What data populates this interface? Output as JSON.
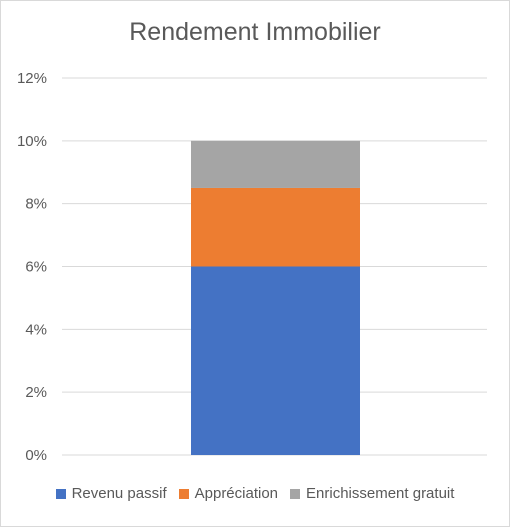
{
  "chart_data": {
    "type": "bar",
    "stacked": true,
    "title": "Rendement Immobilier",
    "categories": [
      ""
    ],
    "series": [
      {
        "name": "Revenu passif",
        "values": [
          6
        ],
        "color": "#4472c4"
      },
      {
        "name": "Appréciation",
        "values": [
          2.5
        ],
        "color": "#ed7d31"
      },
      {
        "name": "Enrichissement gratuit",
        "values": [
          1.5
        ],
        "color": "#a5a5a5"
      }
    ],
    "yticks": [
      "0%",
      "2%",
      "4%",
      "6%",
      "8%",
      "10%",
      "12%"
    ],
    "ylim": [
      0,
      12
    ],
    "grid": true,
    "legend": "bottom"
  }
}
